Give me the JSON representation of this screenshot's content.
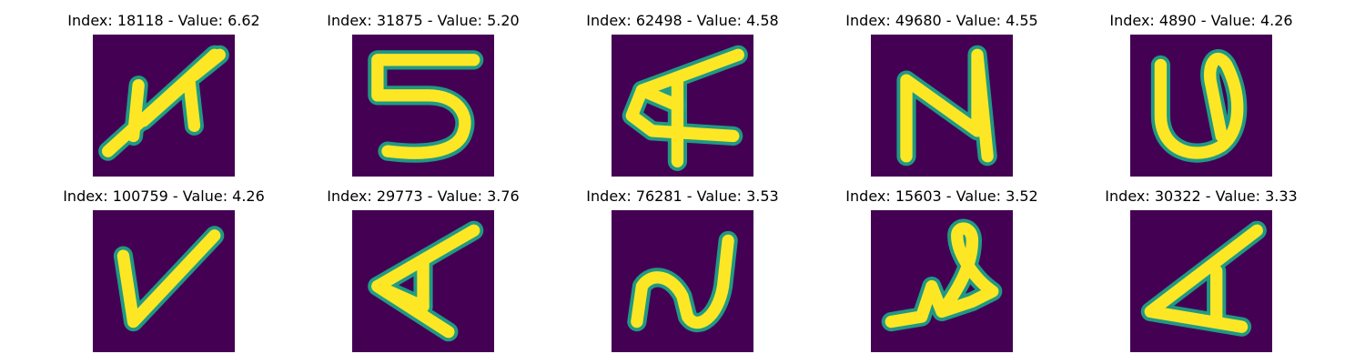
{
  "figure": {
    "background": "#ffffff",
    "image_background": "#440154",
    "stroke_edge": "#1fa187",
    "stroke_color": "#fde725",
    "panels": [
      {
        "title": "Index: 18118 - Value: 6.62",
        "glyph": "scribbled-x"
      },
      {
        "title": "Index: 31875 - Value: 5.20",
        "glyph": "five"
      },
      {
        "title": "Index: 62498 - Value: 4.58",
        "glyph": "script-a"
      },
      {
        "title": "Index: 49680 - Value: 4.55",
        "glyph": "script-n"
      },
      {
        "title": "Index: 4890 - Value: 4.26",
        "glyph": "looped-u"
      },
      {
        "title": "Index: 100759 - Value: 4.26",
        "glyph": "v"
      },
      {
        "title": "Index: 29773 - Value: 3.76",
        "glyph": "script-a"
      },
      {
        "title": "Index: 76281 - Value: 3.53",
        "glyph": "script-n"
      },
      {
        "title": "Index: 15603 - Value: 3.52",
        "glyph": "looped-l"
      },
      {
        "title": "Index: 30322 - Value: 3.33",
        "glyph": "script-a"
      }
    ]
  }
}
